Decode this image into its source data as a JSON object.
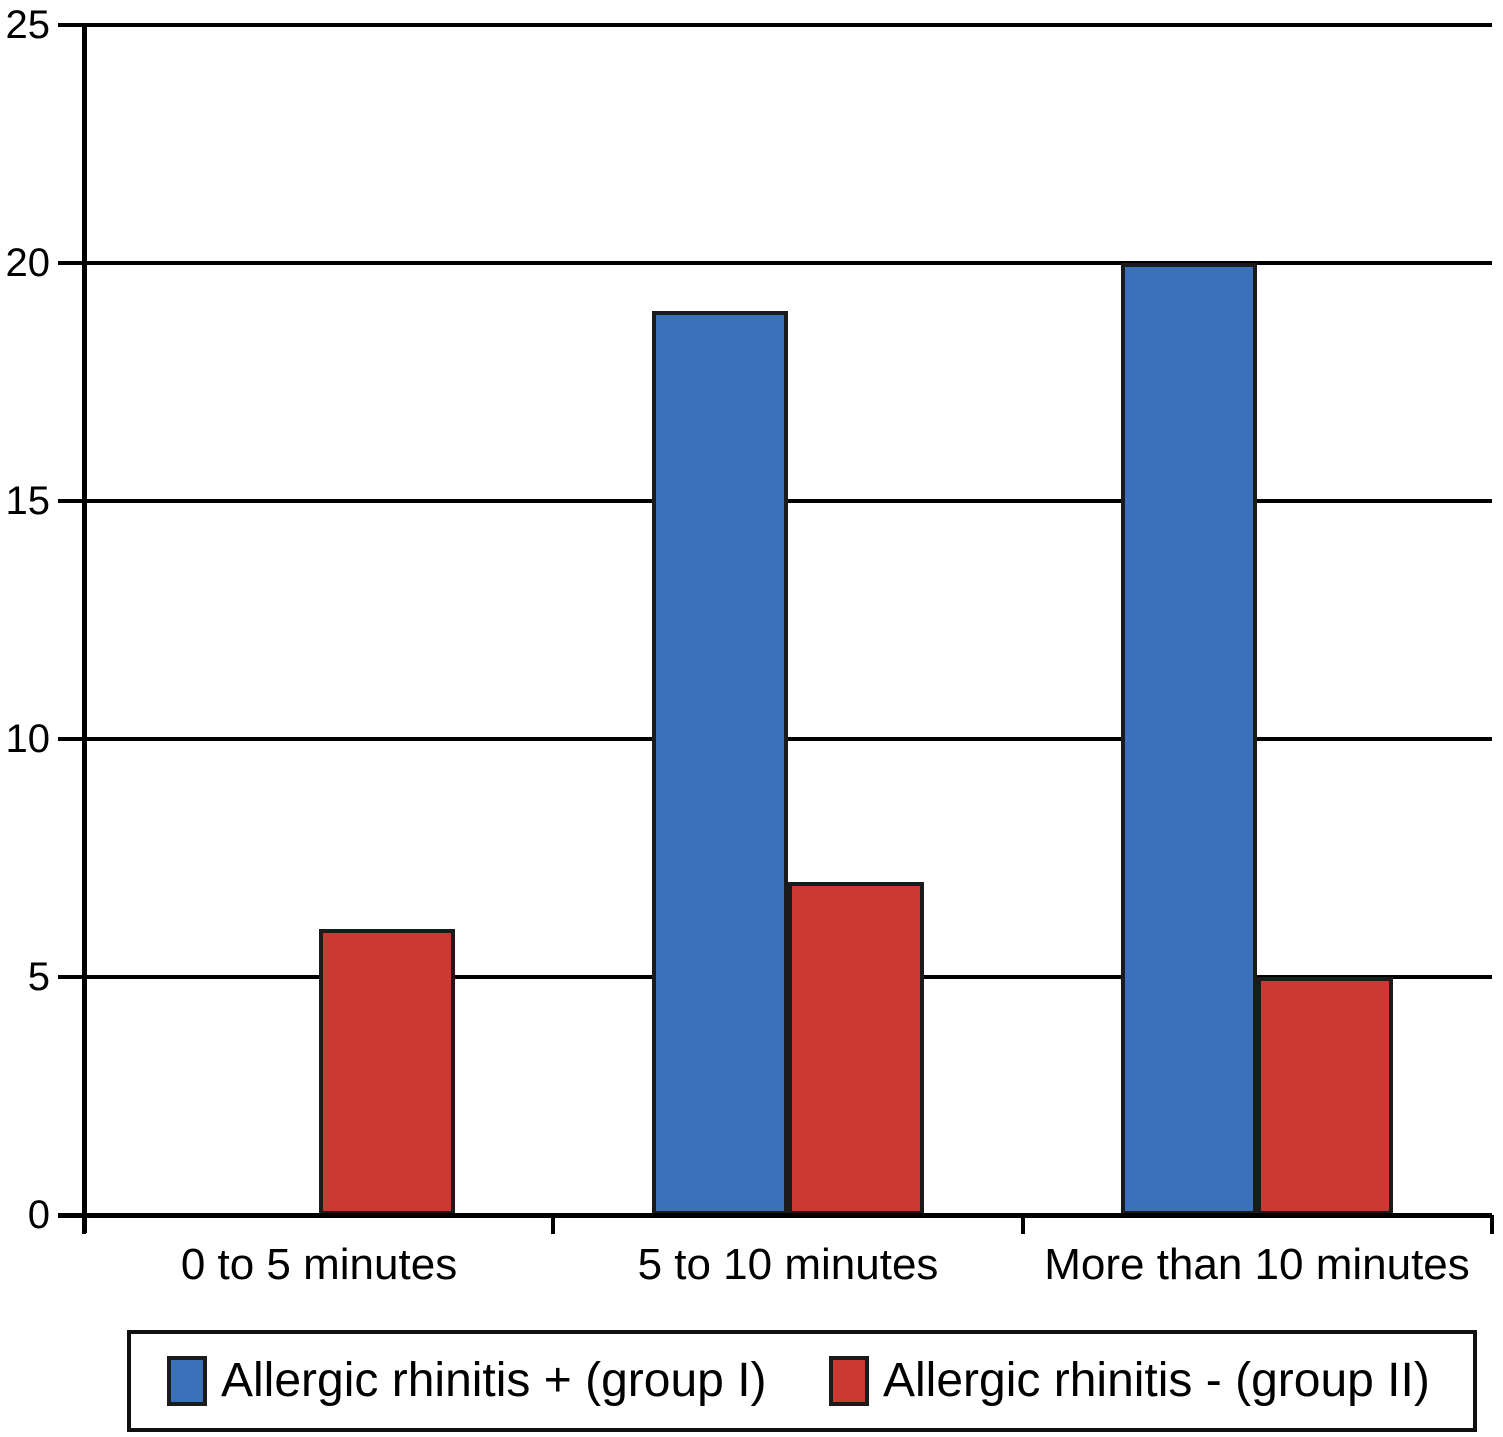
{
  "chart_data": {
    "type": "bar",
    "title": "",
    "xlabel": "",
    "ylabel": "",
    "categories": [
      "0 to 5 minutes",
      "5 to 10 minutes",
      "More than 10 minutes"
    ],
    "series": [
      {
        "name": "Allergic rhinitis + (group I)",
        "color": "#3a71b9",
        "values": [
          0,
          19,
          20
        ]
      },
      {
        "name": "Allergic rhinitis - (group II)",
        "color": "#ca3a33",
        "values": [
          6,
          7,
          5
        ]
      }
    ],
    "ylim": [
      0,
      25
    ],
    "yticks": [
      0,
      5,
      10,
      15,
      20,
      25
    ],
    "grid": true,
    "legend_position": "bottom"
  },
  "colors": {
    "series_blue": "#3a71b9",
    "series_red": "#ca3a33",
    "axis": "#000000",
    "bar_border": "#1b1b1b",
    "background": "#ffffff"
  }
}
